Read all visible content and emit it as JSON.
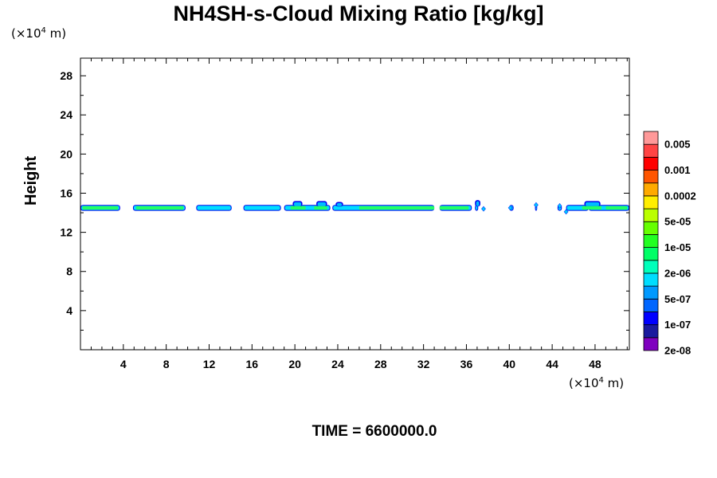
{
  "chart_data": {
    "type": "contour",
    "title": "NH4SH-s-Cloud Mixing Ratio [kg/kg]",
    "ylabel": "Height",
    "xlabel": "",
    "y_unit": {
      "prefix": "(×10",
      "exp": "4",
      "suffix": " m)"
    },
    "x_unit": {
      "prefix": "(×10",
      "exp": "4",
      "suffix": " m)"
    },
    "xlim": [
      0,
      51.2
    ],
    "ylim": [
      0,
      29.8
    ],
    "xticks": [
      4,
      8,
      12,
      16,
      20,
      24,
      28,
      32,
      36,
      40,
      44,
      48
    ],
    "yticks": [
      4,
      8,
      12,
      16,
      20,
      24,
      28
    ],
    "cloud_layer": {
      "base_height": 14.2,
      "top_height": 14.8,
      "segments": [
        [
          0,
          3.7
        ],
        [
          4.9,
          9.8
        ],
        [
          10.8,
          14.1
        ],
        [
          15.2,
          18.7
        ],
        [
          19.0,
          23.3
        ],
        [
          23.5,
          33.0
        ],
        [
          33.5,
          36.5
        ],
        [
          36.8,
          37.1
        ],
        [
          40.0,
          40.4
        ],
        [
          42.4,
          42.6
        ],
        [
          44.5,
          44.9
        ],
        [
          45.3,
          47.4
        ],
        [
          47.4,
          51.2
        ]
      ],
      "bumps": [
        [
          19.8,
          20.7,
          15.2
        ],
        [
          22.0,
          23.0,
          15.2
        ],
        [
          23.8,
          24.5,
          15.1
        ],
        [
          36.8,
          37.3,
          15.3
        ],
        [
          47.0,
          48.5,
          15.2
        ]
      ],
      "scattered_points": [
        [
          37.6,
          14.4
        ],
        [
          40.1,
          14.5
        ],
        [
          42.5,
          14.8
        ],
        [
          44.7,
          14.7
        ],
        [
          45.3,
          14.1
        ]
      ],
      "core_segments": [
        [
          0.2,
          3.5
        ],
        [
          5.2,
          9.6
        ],
        [
          19.6,
          21.0
        ],
        [
          21.8,
          23.0
        ],
        [
          26.0,
          33.0
        ],
        [
          33.5,
          36.2
        ],
        [
          46.8,
          48.6
        ],
        [
          49.0,
          51.0
        ]
      ]
    },
    "colorbar": {
      "labels": [
        "0.005",
        "0.001",
        "0.0002",
        "5e-05",
        "1e-05",
        "2e-06",
        "5e-07",
        "1e-07",
        "2e-08"
      ],
      "colors": [
        "#7f00bf",
        "#1a1a9e",
        "#0000ff",
        "#0066ff",
        "#0099ff",
        "#00ddff",
        "#00ffbb",
        "#00ff66",
        "#22ff22",
        "#66ff00",
        "#bbff00",
        "#ffee00",
        "#ffaa00",
        "#ff5500",
        "#ff0000",
        "#ff4444",
        "#ff9999"
      ]
    }
  },
  "footer": {
    "time_label": "TIME = 6600000.0"
  }
}
